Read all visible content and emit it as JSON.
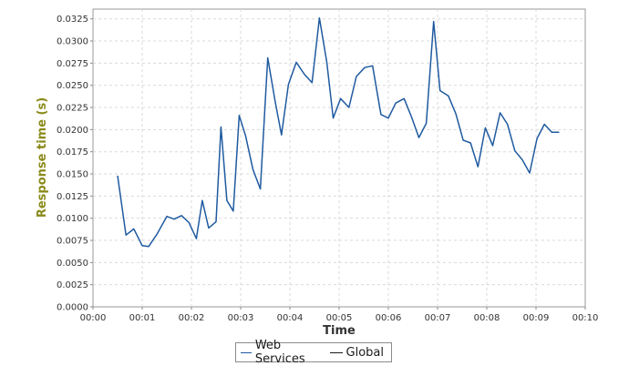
{
  "chart_data": {
    "type": "line",
    "xlabel": "Time",
    "ylabel": "Response time (s)",
    "xlim": [
      0,
      10
    ],
    "ylim": [
      0,
      0.0336
    ],
    "grid": true,
    "legend_position": "bottom",
    "x_ticks": [
      "00:00",
      "00:01",
      "00:02",
      "00:03",
      "00:04",
      "00:05",
      "00:06",
      "00:07",
      "00:08",
      "00:09",
      "00:10"
    ],
    "y_ticks": [
      "0.0000",
      "0.0025",
      "0.0050",
      "0.0075",
      "0.0100",
      "0.0125",
      "0.0150",
      "0.0175",
      "0.0200",
      "0.0225",
      "0.0250",
      "0.0275",
      "0.0300",
      "0.0325"
    ],
    "series": [
      {
        "name": "Web Services",
        "color": "#1f5aa0",
        "x": [
          0.5,
          0.67,
          0.83,
          1.0,
          1.13,
          1.3,
          1.5,
          1.65,
          1.8,
          1.95,
          2.1,
          2.22,
          2.35,
          2.5,
          2.6,
          2.72,
          2.85,
          2.97,
          3.1,
          3.25,
          3.4,
          3.55,
          3.7,
          3.83,
          3.97,
          4.13,
          4.3,
          4.45,
          4.6,
          4.75,
          4.88,
          5.03,
          5.2,
          5.35,
          5.52,
          5.68,
          5.85,
          6.0,
          6.15,
          6.32,
          6.48,
          6.62,
          6.77,
          6.92,
          7.05,
          7.22,
          7.37,
          7.52,
          7.67,
          7.82,
          7.97,
          8.12,
          8.27,
          8.42,
          8.57,
          8.72,
          8.87,
          9.02,
          9.17,
          9.32,
          9.47
        ],
        "values": [
          0.0148,
          0.0081,
          0.0088,
          0.0069,
          0.0068,
          0.0082,
          0.0102,
          0.0099,
          0.0103,
          0.0095,
          0.0077,
          0.012,
          0.0089,
          0.0096,
          0.0203,
          0.012,
          0.0108,
          0.0216,
          0.0193,
          0.0155,
          0.0133,
          0.0281,
          0.0232,
          0.0194,
          0.0251,
          0.0276,
          0.0262,
          0.0253,
          0.0326,
          0.0276,
          0.0213,
          0.0235,
          0.0225,
          0.026,
          0.027,
          0.0272,
          0.0217,
          0.0213,
          0.023,
          0.0235,
          0.0213,
          0.0191,
          0.0207,
          0.0322,
          0.0244,
          0.0238,
          0.0218,
          0.0188,
          0.0185,
          0.0158,
          0.0202,
          0.0182,
          0.0219,
          0.0206,
          0.0176,
          0.0166,
          0.0151,
          0.019,
          0.0206,
          0.0197,
          0.0197
        ]
      }
    ],
    "legend": [
      {
        "label": "Web Services",
        "color": "#1f5aa0"
      },
      {
        "label": "Global",
        "color": "#1a1a1a"
      }
    ]
  },
  "colors": {
    "axis_title": "#8a8a1a",
    "grid": "#d9d9d9",
    "plot_background": "#ffffff"
  }
}
